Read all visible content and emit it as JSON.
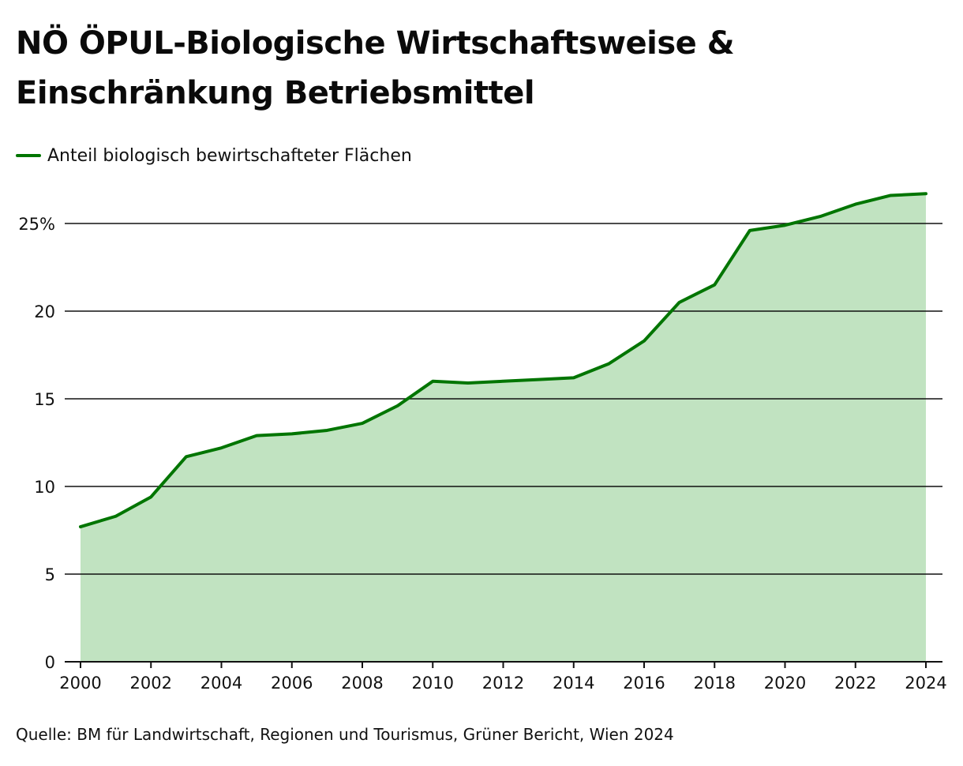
{
  "chart_data": {
    "type": "area",
    "title": "NÖ ÖPUL-Biologische Wirtschaftsweise & Einschränkung Betriebsmittel",
    "legend": "Anteil biologisch bewirtschafteter Flächen",
    "x": [
      2000,
      2001,
      2002,
      2003,
      2004,
      2005,
      2006,
      2007,
      2008,
      2009,
      2010,
      2011,
      2012,
      2013,
      2014,
      2015,
      2016,
      2017,
      2018,
      2019,
      2020,
      2021,
      2022,
      2023,
      2024
    ],
    "values": [
      7.7,
      8.3,
      9.4,
      11.7,
      12.2,
      12.9,
      13.0,
      13.2,
      13.6,
      14.6,
      16.0,
      15.9,
      16.0,
      16.1,
      16.2,
      17.0,
      18.3,
      20.5,
      21.5,
      24.6,
      24.9,
      25.4,
      26.1,
      26.6,
      26.7
    ],
    "xticks": [
      2000,
      2002,
      2004,
      2006,
      2008,
      2010,
      2012,
      2014,
      2016,
      2018,
      2020,
      2022,
      2024
    ],
    "xtick_labels": [
      "2000",
      "2002",
      "2004",
      "2006",
      "2008",
      "2010",
      "2012",
      "2014",
      "2016",
      "2018",
      "2020",
      "2022",
      "2024"
    ],
    "yticks": [
      0,
      5,
      10,
      15,
      20,
      25
    ],
    "ytick_labels": [
      "0",
      "5",
      "10",
      "15",
      "20",
      "25%"
    ],
    "ylim": [
      0,
      28
    ],
    "xlim": [
      2000,
      2024
    ],
    "xlabel": "",
    "ylabel": "",
    "grid": "horizontal",
    "line_color": "#007500",
    "fill_color": "#c1e3c1",
    "grid_color": "#111111"
  },
  "source": "Quelle: BM für Landwirtschaft, Regionen und Tourismus, Grüner Bericht, Wien 2024"
}
